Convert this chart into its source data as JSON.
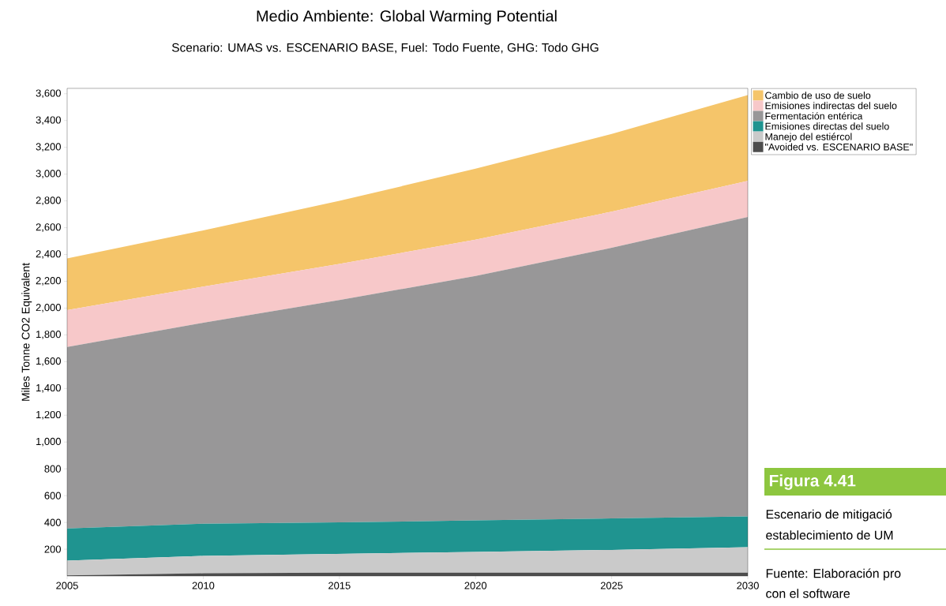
{
  "chart_data": {
    "type": "area",
    "stacked": true,
    "title": "Medio Ambiente: Global Warming Potential",
    "subtitle": "Scenario: UMAS vs. ESCENARIO BASE, Fuel: Todo Fuente, GHG: Todo GHG",
    "ylabel": "Miles Tonne CO2 Equivalent",
    "x": [
      2005,
      2010,
      2015,
      2020,
      2025,
      2030
    ],
    "series": [
      {
        "name": "\"Avoided vs. ESCENARIO BASE\"",
        "color": "#4d4d4d",
        "values": [
          5,
          20,
          25,
          25,
          25,
          25
        ]
      },
      {
        "name": "Manejo del estiércol",
        "color": "#cacaca",
        "values": [
          110,
          130,
          140,
          155,
          170,
          190
        ]
      },
      {
        "name": "Emisiones directas del suelo",
        "color": "#1f9490",
        "values": [
          240,
          240,
          235,
          235,
          235,
          230
        ]
      },
      {
        "name": "Fermentación entérica",
        "color": "#989798",
        "values": [
          1355,
          1500,
          1660,
          1825,
          2020,
          2235
        ]
      },
      {
        "name": "Emisiones indirectas del suelo",
        "color": "#f7c8c9",
        "values": [
          275,
          270,
          270,
          270,
          270,
          270
        ]
      },
      {
        "name": "Cambio de uso de suelo",
        "color": "#f5c56a",
        "values": [
          385,
          420,
          470,
          530,
          580,
          640
        ]
      }
    ],
    "xlim": [
      2005,
      2030
    ],
    "xticks": [
      2005,
      2010,
      2015,
      2020,
      2025,
      2030
    ],
    "ylim": [
      0,
      3640
    ],
    "yticks": [
      200,
      400,
      600,
      800,
      {
        "value": 1000,
        "label": "1,000"
      },
      {
        "value": 1200,
        "label": "1,200"
      },
      {
        "value": 1400,
        "label": "1,400"
      },
      {
        "value": 1600,
        "label": "1,600"
      },
      {
        "value": 1800,
        "label": "1,800"
      },
      {
        "value": 2000,
        "label": "2,000"
      },
      {
        "value": 2200,
        "label": "2,200"
      },
      {
        "value": 2400,
        "label": "2,400"
      },
      {
        "value": 2600,
        "label": "2,600"
      },
      {
        "value": 2800,
        "label": "2,800"
      },
      {
        "value": 3000,
        "label": "3,000"
      },
      {
        "value": 3200,
        "label": "3,200"
      },
      {
        "value": 3400,
        "label": "3,400"
      },
      {
        "value": 3600,
        "label": "3,600"
      }
    ],
    "legend": "right",
    "annotations": [
      "Figura 4.41",
      "Escenario de mitigació",
      "establecimiento de UM",
      "Fuente: Elaboración pro",
      "con el software"
    ]
  }
}
